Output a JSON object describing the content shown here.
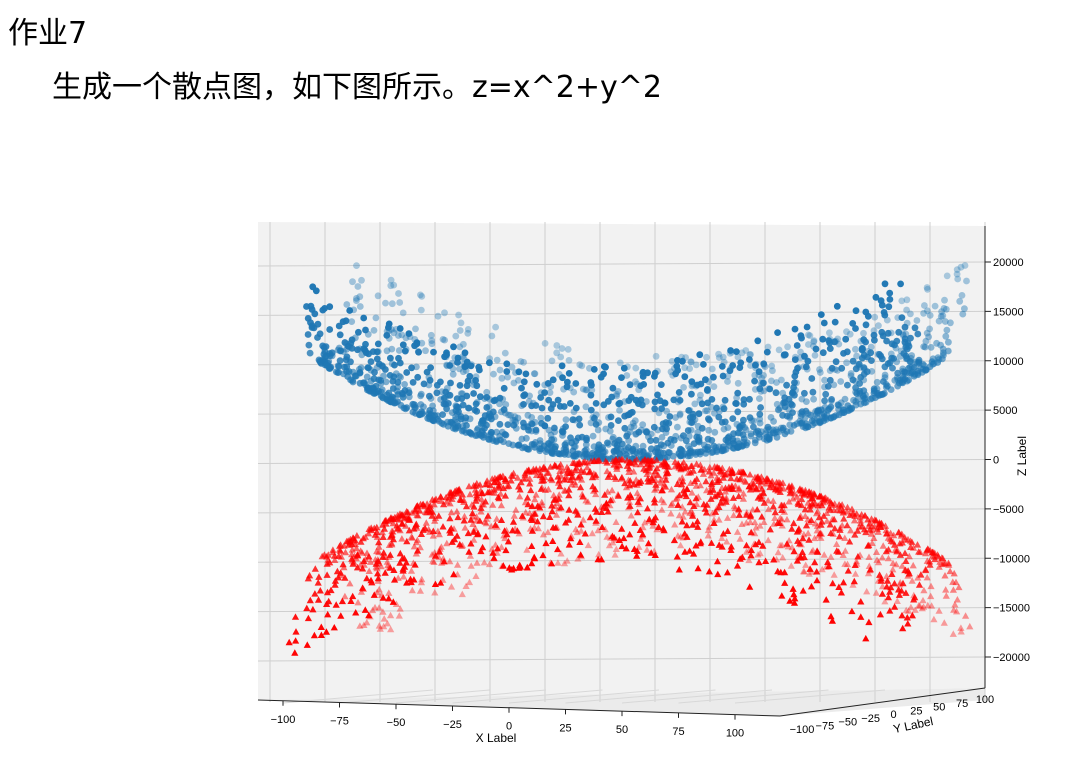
{
  "page": {
    "heading": "作业7",
    "instruction": "生成一个散点图，如下图所示。z=x^2+y^2"
  },
  "chart_data": {
    "type": "scatter",
    "projection": "3d",
    "title": "",
    "xlabel": "X Label",
    "ylabel": "Y Label",
    "zlabel": "Z Label",
    "xlim": [
      -100,
      100
    ],
    "ylim": [
      -100,
      100
    ],
    "zlim": [
      -20000,
      20000
    ],
    "x_ticks": [
      "−100",
      "−75",
      "−50",
      "−25",
      "0",
      "25",
      "50",
      "75",
      "100"
    ],
    "y_ticks": [
      "−100",
      "−75",
      "−50",
      "−25",
      "0",
      "25",
      "50",
      "75",
      "100"
    ],
    "z_ticks": [
      "20000",
      "15000",
      "10000",
      "5000",
      "0",
      "−5000",
      "−10000",
      "−15000",
      "−20000"
    ],
    "grid": true,
    "series": [
      {
        "formula": "z = x^2 + y^2",
        "marker": "circle",
        "color": "#1f77b4",
        "domain": [
          -100,
          100
        ]
      },
      {
        "formula": "z = -(x^2 + y^2)",
        "marker": "triangle",
        "color": "#ff0000",
        "domain": [
          -100,
          100
        ]
      }
    ]
  }
}
